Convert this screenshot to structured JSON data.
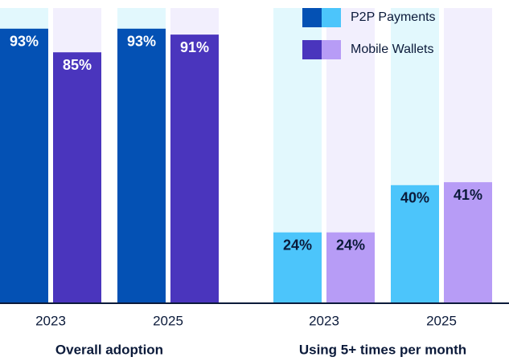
{
  "chart_data": {
    "type": "bar",
    "ylim": [
      0,
      100
    ],
    "groups": [
      {
        "label": "Overall adoption",
        "categories": [
          "2023",
          "2025"
        ],
        "label_color": "#ffffff"
      },
      {
        "label": "Using 5+ times per month",
        "categories": [
          "2023",
          "2025"
        ],
        "label_color": "#0b1a3a"
      }
    ],
    "series": [
      {
        "name": "P2P Payments",
        "colors": [
          "#0451b4",
          "#4cc5fb"
        ],
        "track_color": "#e2f8fd",
        "values": [
          [
            93,
            93
          ],
          [
            24,
            40
          ]
        ],
        "value_labels": [
          [
            "93%",
            "93%"
          ],
          [
            "24%",
            "40%"
          ]
        ]
      },
      {
        "name": "Mobile Wallets",
        "colors": [
          "#4a35bd",
          "#b79cf6"
        ],
        "track_color": "#f2effd",
        "values": [
          [
            85,
            91
          ],
          [
            24,
            41
          ]
        ],
        "value_labels": [
          [
            "85%",
            "91%"
          ],
          [
            "24%",
            "41%"
          ]
        ]
      }
    ]
  }
}
